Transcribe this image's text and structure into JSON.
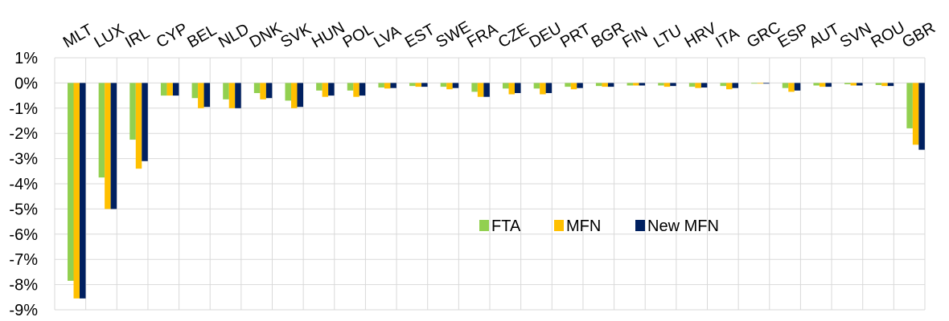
{
  "chart_data": {
    "type": "bar",
    "categories": [
      "MLT",
      "LUX",
      "IRL",
      "CYP",
      "BEL",
      "NLD",
      "DNK",
      "SVK",
      "HUN",
      "POL",
      "LVA",
      "EST",
      "SWE",
      "FRA",
      "CZE",
      "DEU",
      "PRT",
      "BGR",
      "FIN",
      "LTU",
      "HRV",
      "ITA",
      "GRC",
      "ESP",
      "AUT",
      "SVN",
      "ROU",
      "GBR"
    ],
    "series": [
      {
        "name": "FTA",
        "color": "#92D050",
        "values": [
          -7.85,
          -3.75,
          -2.25,
          -0.5,
          -0.6,
          -0.65,
          -0.4,
          -0.7,
          -0.3,
          -0.3,
          -0.18,
          -0.12,
          -0.15,
          -0.35,
          -0.22,
          -0.22,
          -0.15,
          -0.12,
          -0.1,
          -0.1,
          -0.15,
          -0.12,
          -0.02,
          -0.2,
          -0.1,
          -0.05,
          -0.08,
          -1.8
        ]
      },
      {
        "name": "MFN",
        "color": "#FFC000",
        "values": [
          -8.55,
          -5.0,
          -3.4,
          -0.5,
          -1.0,
          -1.0,
          -0.65,
          -1.0,
          -0.55,
          -0.55,
          -0.22,
          -0.15,
          -0.25,
          -0.55,
          -0.45,
          -0.45,
          -0.25,
          -0.15,
          -0.1,
          -0.15,
          -0.2,
          -0.25,
          -0.02,
          -0.35,
          -0.15,
          -0.1,
          -0.12,
          -2.45
        ]
      },
      {
        "name": "New MFN",
        "color": "#002060",
        "values": [
          -8.55,
          -5.0,
          -3.1,
          -0.5,
          -0.95,
          -1.0,
          -0.6,
          -0.95,
          -0.5,
          -0.5,
          -0.2,
          -0.15,
          -0.2,
          -0.55,
          -0.4,
          -0.4,
          -0.2,
          -0.15,
          -0.1,
          -0.12,
          -0.18,
          -0.2,
          -0.02,
          -0.3,
          -0.15,
          -0.1,
          -0.12,
          -2.65
        ]
      }
    ],
    "yticks": [
      "1%",
      "0%",
      "-1%",
      "-2%",
      "-3%",
      "-4%",
      "-5%",
      "-6%",
      "-7%",
      "-8%",
      "-9%"
    ],
    "ytick_values": [
      1,
      0,
      -1,
      -2,
      -3,
      -4,
      -5,
      -6,
      -7,
      -8,
      -9
    ],
    "ylim": [
      -9,
      1
    ],
    "title": "",
    "xlabel": "",
    "ylabel": "",
    "grid": "both",
    "legend_position": "center-right"
  }
}
